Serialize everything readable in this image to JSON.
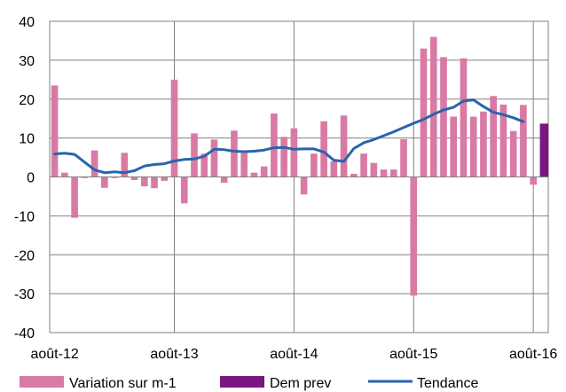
{
  "chart_data": {
    "type": "bar",
    "title": "",
    "xlabel": "",
    "ylabel": "",
    "ylim": [
      -40,
      40
    ],
    "yticks": [
      40,
      30,
      20,
      10,
      0,
      -10,
      -20,
      -30,
      -40
    ],
    "x_tick_labels": [
      "août-12",
      "août-13",
      "août-14",
      "août-15",
      "août-16"
    ],
    "x_tick_label_month_index": [
      0,
      12,
      24,
      36,
      48
    ],
    "vertical_gridlines_at_month_index": [
      12,
      24,
      36,
      48
    ],
    "months_count": 49,
    "series": [
      {
        "name": "Variation sur m-1",
        "type": "bar",
        "color": "#d97aa6",
        "values": [
          23.5,
          1.1,
          -10.5,
          -0.3,
          6.8,
          -2.8,
          -0.3,
          6.2,
          -0.8,
          -2.4,
          -2.9,
          -1.0,
          25.0,
          -6.8,
          11.2,
          6.0,
          9.6,
          -1.5,
          11.9,
          6.2,
          1.1,
          2.7,
          16.3,
          10.3,
          12.5,
          -4.5,
          6.0,
          14.3,
          4.0,
          15.8,
          0.8,
          6.0,
          3.6,
          1.9,
          1.9,
          9.7,
          -30.5,
          33.0,
          36.0,
          30.8,
          15.5,
          30.5,
          15.5,
          16.8,
          20.8,
          18.6,
          11.8,
          18.5,
          -2.0
        ]
      },
      {
        "name": "Dem prev",
        "type": "bar",
        "color": "#7b177f",
        "month_index": 49,
        "value": 13.7
      },
      {
        "name": "Tendance",
        "type": "line",
        "color": "#2a63ad",
        "values": [
          5.9,
          6.1,
          5.8,
          3.8,
          1.8,
          1.1,
          1.3,
          1.1,
          1.6,
          2.8,
          3.2,
          3.4,
          4.1,
          4.5,
          4.6,
          5.3,
          7.1,
          7.0,
          6.6,
          6.5,
          6.6,
          6.9,
          7.5,
          7.6,
          7.1,
          7.2,
          7.2,
          6.4,
          4.3,
          4.0,
          7.3,
          8.8,
          9.6,
          10.6,
          11.6,
          12.7,
          13.8,
          14.8,
          16.1,
          17.2,
          17.9,
          19.5,
          19.8,
          18.1,
          16.6,
          16.0,
          15.2,
          14.2
        ]
      }
    ],
    "legend": {
      "placement": "bottom",
      "items": [
        "Variation sur m-1",
        "Dem prev",
        "Tendance"
      ]
    },
    "grid": true,
    "colors": {
      "grid": "#808080",
      "axis": "#808080",
      "bar_main": "#d97aa6",
      "bar_forecast": "#7b177f",
      "trend_line": "#2a63ad"
    }
  }
}
